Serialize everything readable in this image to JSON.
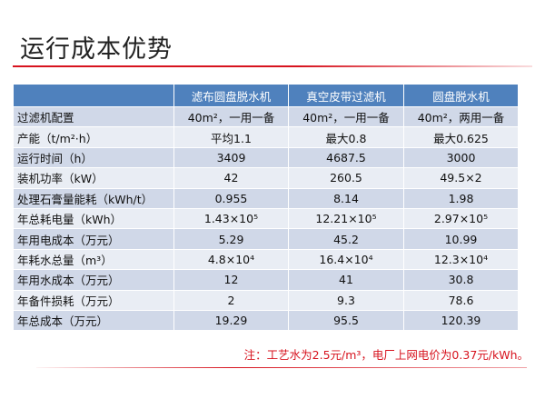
{
  "title": "运行成本优势",
  "table": {
    "headers": [
      "",
      "滤布圆盘脱水机",
      "真空皮带过滤机",
      "圆盘脱水机"
    ],
    "rows": [
      {
        "label": "过滤机配置",
        "values": [
          "40m²，一用一备",
          "40m²，一用一备",
          "40m²，两用一备"
        ]
      },
      {
        "label": "产能（t/m²·h）",
        "values": [
          "平均1.1",
          "最大0.8",
          "最大0.625"
        ]
      },
      {
        "label": "运行时间（h）",
        "values": [
          "3409",
          "4687.5",
          "3000"
        ]
      },
      {
        "label": "装机功率（kW）",
        "values": [
          "42",
          "260.5",
          "49.5×2"
        ]
      },
      {
        "label": "处理石膏量能耗（kWh/t）",
        "values": [
          "0.955",
          "8.14",
          "1.98"
        ]
      },
      {
        "label": "年总耗电量（kWh）",
        "values": [
          "1.43×10⁵",
          "12.21×10⁵",
          "2.97×10⁵"
        ]
      },
      {
        "label": "年用电成本（万元）",
        "values": [
          "5.29",
          "45.2",
          "10.99"
        ]
      },
      {
        "label": "年耗水总量（m³）",
        "values": [
          "4.8×10⁴",
          "16.4×10⁴",
          "12.3×10⁴"
        ]
      },
      {
        "label": "年用水成本（万元）",
        "values": [
          "12",
          "41",
          "30.8"
        ]
      },
      {
        "label": "年备件损耗（万元）",
        "values": [
          "2",
          "9.3",
          "78.6"
        ]
      },
      {
        "label": "年总成本（万元）",
        "values": [
          "19.29",
          "95.5",
          "120.39"
        ]
      }
    ]
  },
  "note": "注：工艺水为2.5元/m³，电厂上网电价为0.37元/kWh。",
  "colors": {
    "accent_red": "#d7131e",
    "header_blue": "#4f81bd",
    "row_dark": "#d0d8e8",
    "row_light": "#e9edf4"
  }
}
